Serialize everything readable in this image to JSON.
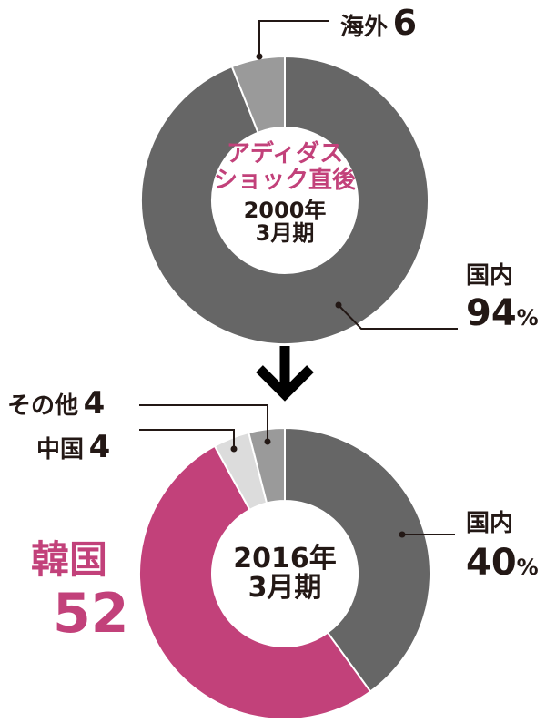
{
  "chart_data": [
    {
      "type": "pie",
      "variant": "donut",
      "title": "2000年3月期",
      "center_caption": [
        "アディダス",
        "ショック直後",
        "2000年",
        "3月期"
      ],
      "categories": [
        "国内",
        "海外"
      ],
      "values": [
        94,
        6
      ],
      "unit": "%",
      "colors": [
        "#666666",
        "#9a9a9a"
      ],
      "start_angle": "12 o'clock",
      "direction": "clockwise"
    },
    {
      "type": "pie",
      "variant": "donut",
      "title": "2016年3月期",
      "center_caption": [
        "2016年",
        "3月期"
      ],
      "categories": [
        "国内",
        "韓国",
        "中国",
        "その他"
      ],
      "values": [
        40,
        52,
        4,
        4
      ],
      "unit": "%",
      "colors": [
        "#666666",
        "#c2417a",
        "#dcdcdc",
        "#9a9a9a"
      ],
      "start_angle": "12 o'clock",
      "direction": "clockwise"
    }
  ],
  "top": {
    "caption_pink_1": "アディダス",
    "caption_pink_2": "ショック直後",
    "caption_year": "2000年",
    "caption_period": "3月期",
    "overseas_label": "海外",
    "overseas_value": "6",
    "domestic_label": "国内",
    "domestic_value": "94",
    "domestic_unit": "%"
  },
  "arrow": {
    "icon": "arrow-down-icon",
    "glyph": "↓"
  },
  "bottom": {
    "caption_year": "2016年",
    "caption_period": "3月期",
    "other_label": "その他",
    "other_value": "4",
    "china_label": "中国",
    "china_value": "4",
    "korea_label": "韓国",
    "korea_value": "52",
    "domestic_label": "国内",
    "domestic_value": "40",
    "domestic_unit": "%"
  },
  "colors": {
    "text": "#231815",
    "accent_pink": "#c2417a",
    "dark_gray": "#666666",
    "mid_gray": "#9a9a9a",
    "light_gray": "#dcdcdc"
  }
}
